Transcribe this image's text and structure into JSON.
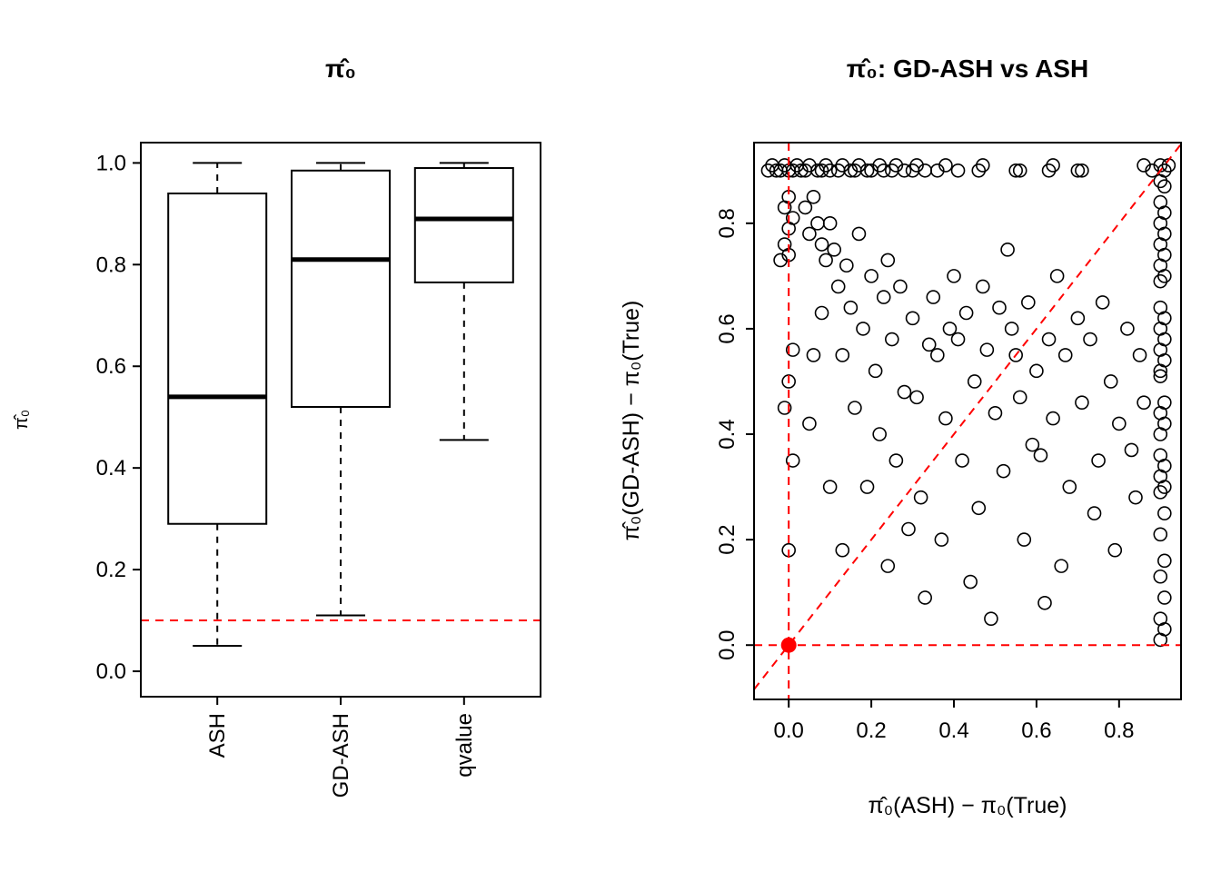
{
  "figure": {
    "background": "#FFFFFF",
    "foreground": "#000000",
    "reference_color": "#FF0000"
  },
  "chart_data": [
    {
      "type": "box",
      "title": "π̂₀",
      "ylabel": "π̂₀",
      "categories": [
        "ASH",
        "GD-ASH",
        "qvalue"
      ],
      "yticks": [
        0.0,
        0.2,
        0.4,
        0.6,
        0.8,
        1.0
      ],
      "ylim": [
        -0.05,
        1.04
      ],
      "boxes": [
        {
          "label": "ASH",
          "whisker_low": 0.05,
          "q1": 0.29,
          "median": 0.54,
          "q3": 0.94,
          "whisker_high": 1.0
        },
        {
          "label": "GD-ASH",
          "whisker_low": 0.11,
          "q1": 0.52,
          "median": 0.81,
          "q3": 0.985,
          "whisker_high": 1.0
        },
        {
          "label": "qvalue",
          "whisker_low": 0.455,
          "q1": 0.765,
          "median": 0.89,
          "q3": 0.99,
          "whisker_high": 1.0
        }
      ],
      "ref_hline": 0.1,
      "ref_style": "dashed",
      "ref_color": "#FF0000",
      "grid": false
    },
    {
      "type": "scatter",
      "title": "π̂₀: GD-ASH vs ASH",
      "xlabel": "π̂₀(ASH) − π₀(True)",
      "ylabel": "π̂₀(GD-ASH) − π₀(True)",
      "xticks": [
        0.0,
        0.2,
        0.4,
        0.6,
        0.8
      ],
      "yticks": [
        0.0,
        0.2,
        0.4,
        0.6,
        0.8
      ],
      "xlim": [
        -0.084,
        0.95
      ],
      "ylim": [
        -0.103,
        0.953
      ],
      "marker": "open-circle",
      "point_color": "#000000",
      "ref_lines": {
        "vline_x": 0.0,
        "hline_y": 0.0,
        "diagonal_y_equals_x": true,
        "style": "dashed",
        "color": "#FF0000"
      },
      "origin_point": {
        "x": 0.0,
        "y": 0.0,
        "color": "#FF0000"
      },
      "grid": false,
      "points": [
        [
          -0.05,
          0.9
        ],
        [
          -0.04,
          0.91
        ],
        [
          -0.03,
          0.9
        ],
        [
          -0.02,
          0.9
        ],
        [
          -0.01,
          0.91
        ],
        [
          0.0,
          0.9
        ],
        [
          0.01,
          0.9
        ],
        [
          0.02,
          0.91
        ],
        [
          0.03,
          0.9
        ],
        [
          0.04,
          0.9
        ],
        [
          0.05,
          0.91
        ],
        [
          0.07,
          0.9
        ],
        [
          0.08,
          0.9
        ],
        [
          0.09,
          0.91
        ],
        [
          0.1,
          0.9
        ],
        [
          0.12,
          0.9
        ],
        [
          0.13,
          0.91
        ],
        [
          0.15,
          0.9
        ],
        [
          0.16,
          0.9
        ],
        [
          0.17,
          0.91
        ],
        [
          0.19,
          0.9
        ],
        [
          0.2,
          0.9
        ],
        [
          0.22,
          0.91
        ],
        [
          0.23,
          0.9
        ],
        [
          0.25,
          0.9
        ],
        [
          0.26,
          0.91
        ],
        [
          0.28,
          0.9
        ],
        [
          0.3,
          0.9
        ],
        [
          0.31,
          0.91
        ],
        [
          0.33,
          0.9
        ],
        [
          0.36,
          0.9
        ],
        [
          0.38,
          0.91
        ],
        [
          0.41,
          0.9
        ],
        [
          0.46,
          0.9
        ],
        [
          0.47,
          0.91
        ],
        [
          0.55,
          0.9
        ],
        [
          0.56,
          0.9
        ],
        [
          0.63,
          0.9
        ],
        [
          0.64,
          0.91
        ],
        [
          0.7,
          0.9
        ],
        [
          0.71,
          0.9
        ],
        [
          0.86,
          0.91
        ],
        [
          0.88,
          0.9
        ],
        [
          0.9,
          0.91
        ],
        [
          0.91,
          0.9
        ],
        [
          0.92,
          0.91
        ],
        [
          0.9,
          0.88
        ],
        [
          0.91,
          0.87
        ],
        [
          0.9,
          0.84
        ],
        [
          0.91,
          0.82
        ],
        [
          0.9,
          0.8
        ],
        [
          0.91,
          0.78
        ],
        [
          0.9,
          0.76
        ],
        [
          0.91,
          0.74
        ],
        [
          0.9,
          0.72
        ],
        [
          0.91,
          0.7
        ],
        [
          0.9,
          0.69
        ],
        [
          0.9,
          0.64
        ],
        [
          0.91,
          0.62
        ],
        [
          0.9,
          0.6
        ],
        [
          0.91,
          0.58
        ],
        [
          0.9,
          0.56
        ],
        [
          0.91,
          0.54
        ],
        [
          0.9,
          0.52
        ],
        [
          0.9,
          0.51
        ],
        [
          0.91,
          0.46
        ],
        [
          0.9,
          0.44
        ],
        [
          0.91,
          0.42
        ],
        [
          0.9,
          0.4
        ],
        [
          0.9,
          0.36
        ],
        [
          0.91,
          0.34
        ],
        [
          0.9,
          0.32
        ],
        [
          0.91,
          0.3
        ],
        [
          0.9,
          0.29
        ],
        [
          0.91,
          0.25
        ],
        [
          0.9,
          0.21
        ],
        [
          0.91,
          0.16
        ],
        [
          0.9,
          0.13
        ],
        [
          0.91,
          0.09
        ],
        [
          0.9,
          0.05
        ],
        [
          0.91,
          0.03
        ],
        [
          0.9,
          0.01
        ],
        [
          0.0,
          0.85
        ],
        [
          -0.01,
          0.83
        ],
        [
          0.01,
          0.81
        ],
        [
          0.0,
          0.79
        ],
        [
          -0.01,
          0.76
        ],
        [
          0.0,
          0.74
        ],
        [
          -0.02,
          0.73
        ],
        [
          0.01,
          0.56
        ],
        [
          0.0,
          0.5
        ],
        [
          -0.01,
          0.45
        ],
        [
          0.0,
          0.18
        ],
        [
          0.01,
          0.35
        ],
        [
          0.04,
          0.83
        ],
        [
          0.05,
          0.78
        ],
        [
          0.06,
          0.85
        ],
        [
          0.07,
          0.8
        ],
        [
          0.08,
          0.76
        ],
        [
          0.09,
          0.73
        ],
        [
          0.1,
          0.8
        ],
        [
          0.11,
          0.75
        ],
        [
          0.12,
          0.68
        ],
        [
          0.13,
          0.55
        ],
        [
          0.14,
          0.72
        ],
        [
          0.15,
          0.64
        ],
        [
          0.16,
          0.45
        ],
        [
          0.17,
          0.78
        ],
        [
          0.18,
          0.6
        ],
        [
          0.19,
          0.3
        ],
        [
          0.2,
          0.7
        ],
        [
          0.21,
          0.52
        ],
        [
          0.22,
          0.4
        ],
        [
          0.23,
          0.66
        ],
        [
          0.24,
          0.73
        ],
        [
          0.25,
          0.58
        ],
        [
          0.26,
          0.35
        ],
        [
          0.27,
          0.68
        ],
        [
          0.28,
          0.48
        ],
        [
          0.29,
          0.22
        ],
        [
          0.3,
          0.62
        ],
        [
          0.31,
          0.47
        ],
        [
          0.32,
          0.28
        ],
        [
          0.33,
          0.09
        ],
        [
          0.34,
          0.57
        ],
        [
          0.35,
          0.66
        ],
        [
          0.36,
          0.55
        ],
        [
          0.37,
          0.2
        ],
        [
          0.38,
          0.43
        ],
        [
          0.39,
          0.6
        ],
        [
          0.4,
          0.7
        ],
        [
          0.41,
          0.58
        ],
        [
          0.42,
          0.35
        ],
        [
          0.43,
          0.63
        ],
        [
          0.44,
          0.12
        ],
        [
          0.45,
          0.5
        ],
        [
          0.46,
          0.26
        ],
        [
          0.47,
          0.68
        ],
        [
          0.48,
          0.56
        ],
        [
          0.49,
          0.05
        ],
        [
          0.5,
          0.44
        ],
        [
          0.51,
          0.64
        ],
        [
          0.52,
          0.33
        ],
        [
          0.53,
          0.75
        ],
        [
          0.54,
          0.6
        ],
        [
          0.55,
          0.55
        ],
        [
          0.56,
          0.47
        ],
        [
          0.57,
          0.2
        ],
        [
          0.58,
          0.65
        ],
        [
          0.59,
          0.38
        ],
        [
          0.6,
          0.52
        ],
        [
          0.61,
          0.36
        ],
        [
          0.62,
          0.08
        ],
        [
          0.63,
          0.58
        ],
        [
          0.64,
          0.43
        ],
        [
          0.65,
          0.7
        ],
        [
          0.66,
          0.15
        ],
        [
          0.67,
          0.55
        ],
        [
          0.68,
          0.3
        ],
        [
          0.7,
          0.62
        ],
        [
          0.71,
          0.46
        ],
        [
          0.73,
          0.58
        ],
        [
          0.74,
          0.25
        ],
        [
          0.75,
          0.35
        ],
        [
          0.76,
          0.65
        ],
        [
          0.78,
          0.5
        ],
        [
          0.79,
          0.18
        ],
        [
          0.8,
          0.42
        ],
        [
          0.82,
          0.6
        ],
        [
          0.83,
          0.37
        ],
        [
          0.84,
          0.28
        ],
        [
          0.85,
          0.55
        ],
        [
          0.86,
          0.46
        ],
        [
          0.05,
          0.42
        ],
        [
          0.06,
          0.55
        ],
        [
          0.08,
          0.63
        ],
        [
          0.1,
          0.3
        ],
        [
          0.13,
          0.18
        ],
        [
          0.24,
          0.15
        ]
      ]
    }
  ]
}
